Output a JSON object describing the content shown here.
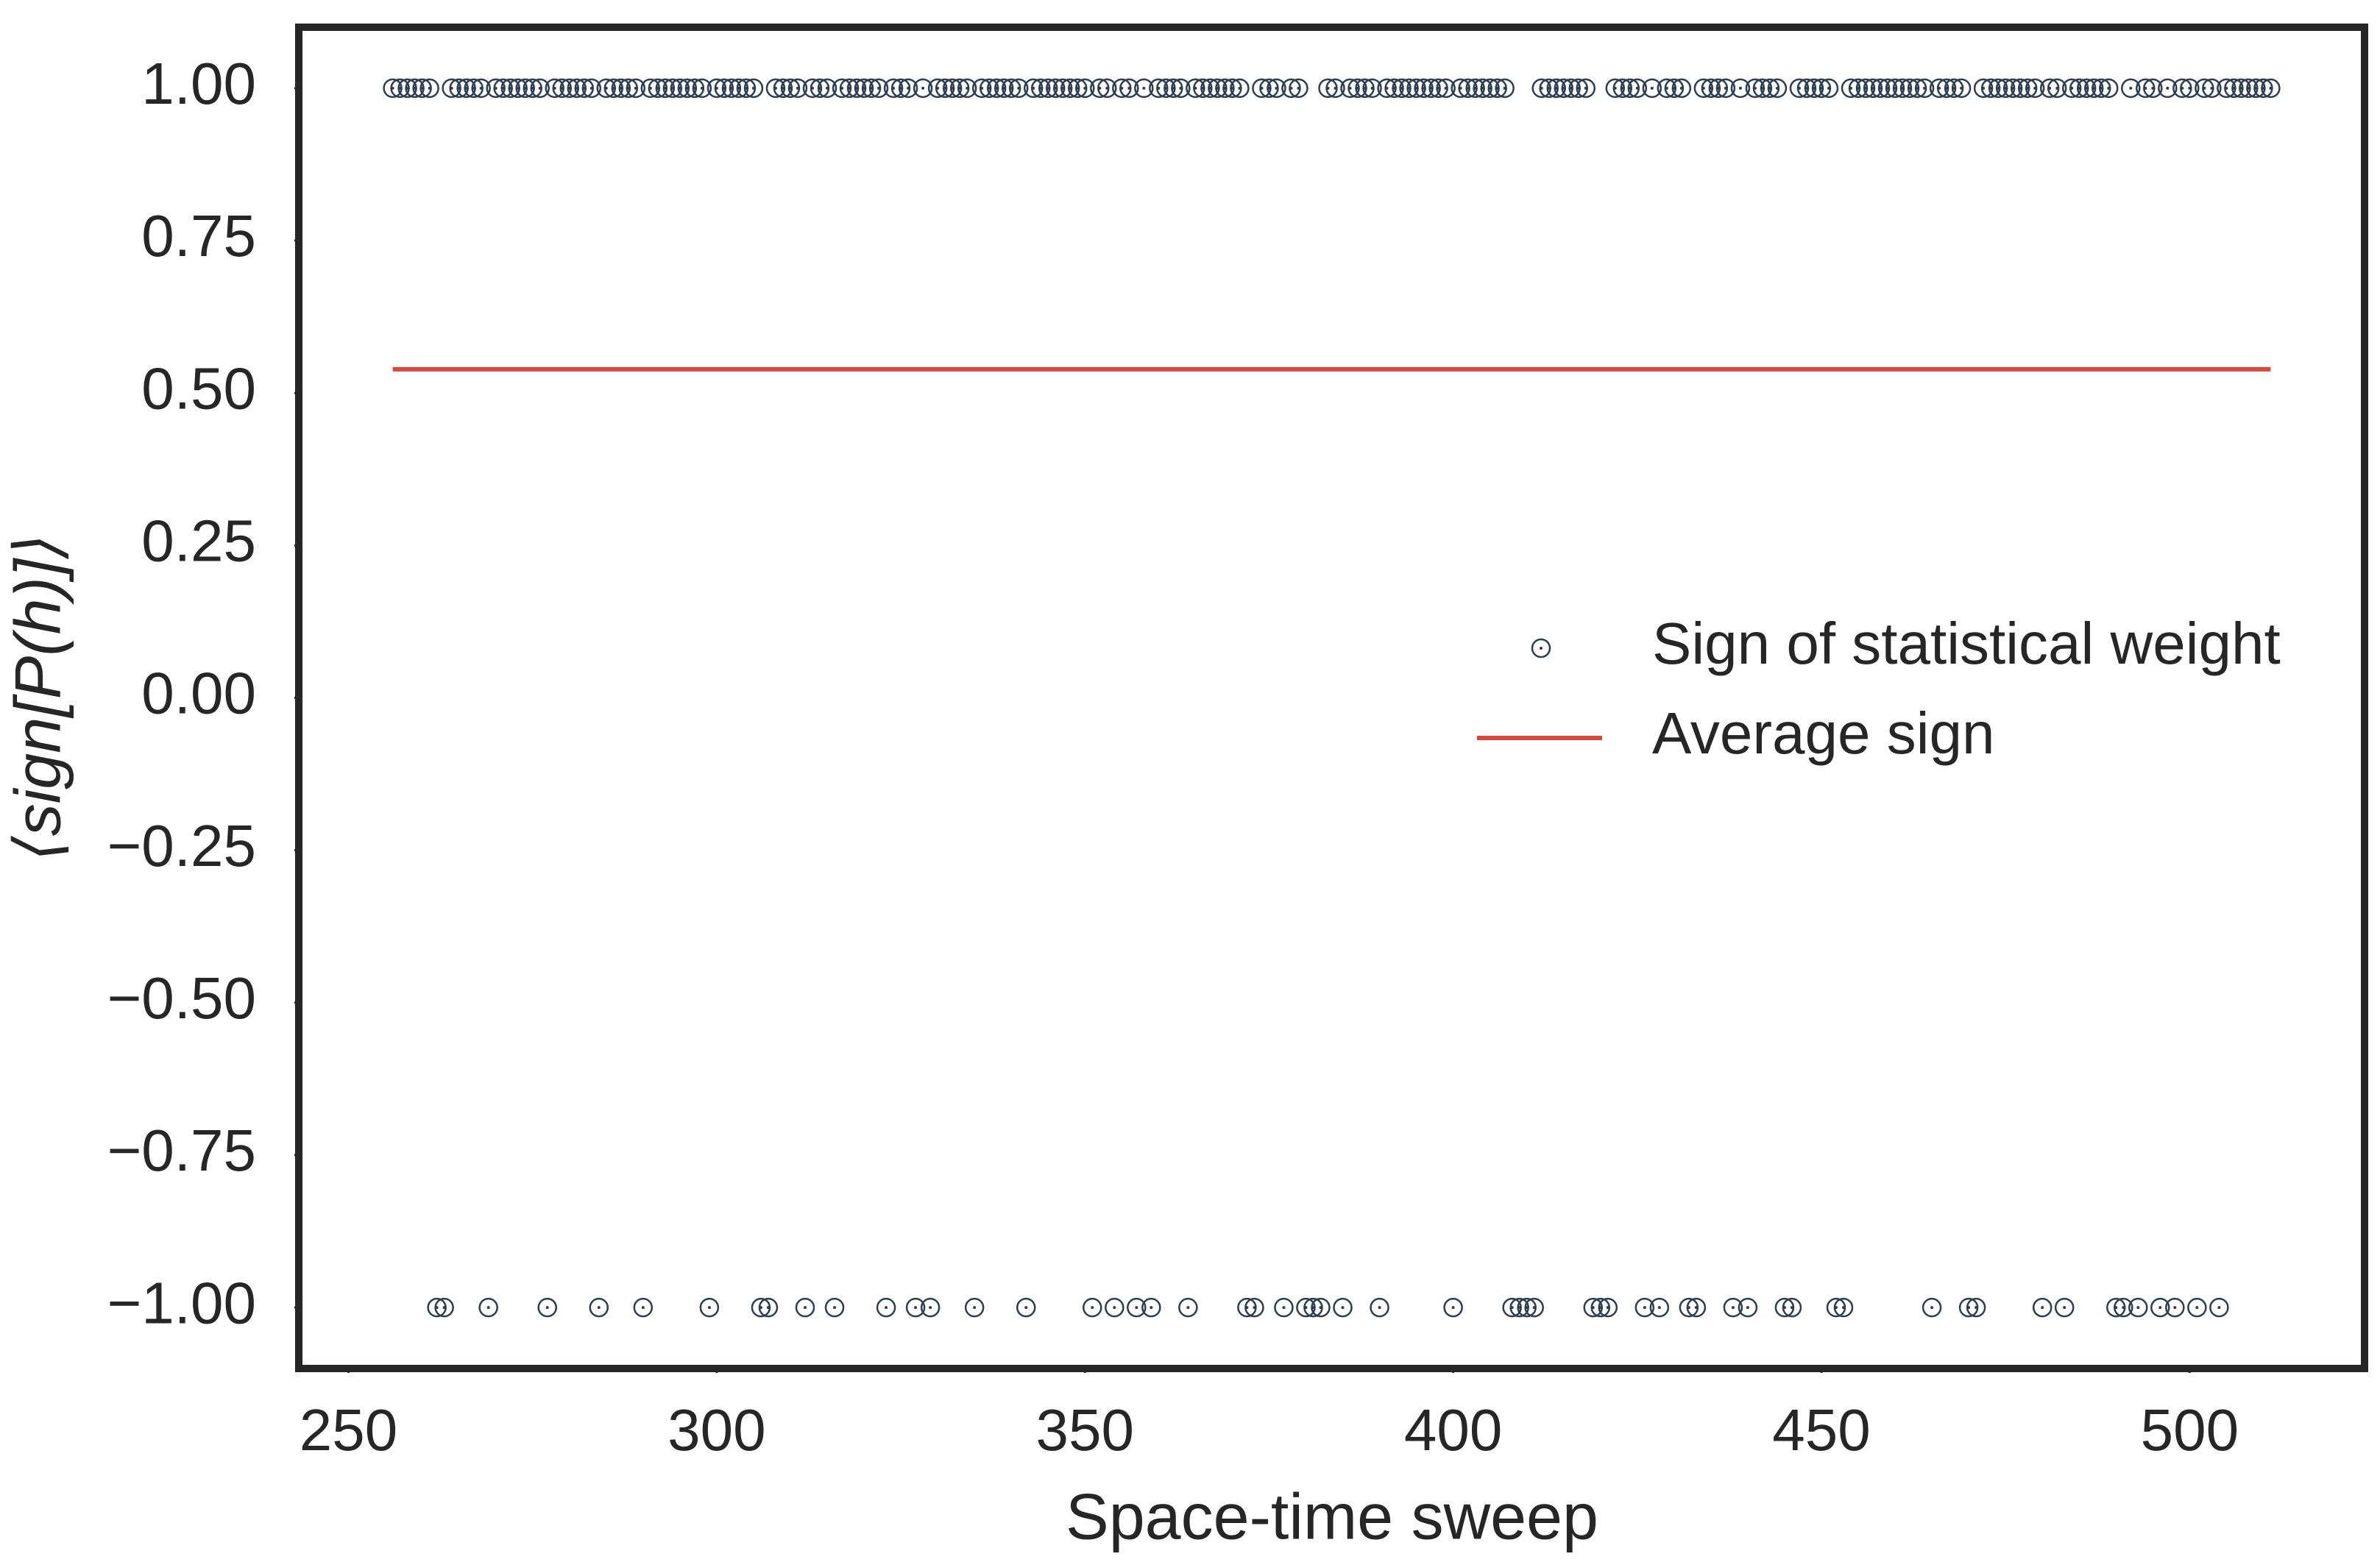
{
  "chart_data": {
    "type": "scatter",
    "x_label": "Space-time sweep",
    "y_label": "⟨sign[P(h)]⟩",
    "xlim": [
      243.25,
      523.75
    ],
    "ylim": [
      -1.1,
      1.1
    ],
    "xticks": [
      250,
      300,
      350,
      400,
      450,
      500
    ],
    "yticks": [
      {
        "value": 1,
        "label": "1.00"
      },
      {
        "value": 0.75,
        "label": "0.75"
      },
      {
        "value": 0.5,
        "label": "0.50"
      },
      {
        "value": 0.25,
        "label": "0.25"
      },
      {
        "value": 0,
        "label": "0.00"
      },
      {
        "value": -0.25,
        "label": "−0.25"
      },
      {
        "value": -0.5,
        "label": "−0.50"
      },
      {
        "value": -0.75,
        "label": "−0.75"
      },
      {
        "value": -1,
        "label": "−1.00"
      }
    ],
    "grid": false,
    "legend": "center right",
    "series": [
      {
        "name": "Sign of statistical weight",
        "color": "#2c3e50",
        "style": "marker",
        "x": [
          256,
          257,
          258,
          259,
          260,
          261,
          262,
          263,
          264,
          265,
          266,
          267,
          268,
          269,
          270,
          271,
          272,
          273,
          274,
          275,
          276,
          277,
          278,
          279,
          280,
          281,
          282,
          283,
          284,
          285,
          286,
          287,
          288,
          289,
          290,
          291,
          292,
          293,
          294,
          295,
          296,
          297,
          298,
          299,
          300,
          301,
          302,
          303,
          304,
          305,
          306,
          307,
          308,
          309,
          310,
          311,
          312,
          313,
          314,
          315,
          316,
          317,
          318,
          319,
          320,
          321,
          322,
          323,
          324,
          325,
          326,
          327,
          328,
          329,
          330,
          331,
          332,
          333,
          334,
          335,
          336,
          337,
          338,
          339,
          340,
          341,
          342,
          343,
          344,
          345,
          346,
          347,
          348,
          349,
          350,
          351,
          352,
          353,
          354,
          355,
          356,
          357,
          358,
          359,
          360,
          361,
          362,
          363,
          364,
          365,
          366,
          367,
          368,
          369,
          370,
          371,
          372,
          373,
          374,
          375,
          376,
          377,
          378,
          379,
          380,
          381,
          382,
          383,
          384,
          385,
          386,
          387,
          388,
          389,
          390,
          391,
          392,
          393,
          394,
          395,
          396,
          397,
          398,
          399,
          400,
          401,
          402,
          403,
          404,
          405,
          406,
          407,
          408,
          409,
          410,
          411,
          412,
          413,
          414,
          415,
          416,
          417,
          418,
          419,
          420,
          421,
          422,
          423,
          424,
          425,
          426,
          427,
          428,
          429,
          430,
          431,
          432,
          433,
          434,
          435,
          436,
          437,
          438,
          439,
          440,
          441,
          442,
          443,
          444,
          445,
          446,
          447,
          448,
          449,
          450,
          451,
          452,
          453,
          454,
          455,
          456,
          457,
          458,
          459,
          460,
          461,
          462,
          463,
          464,
          465,
          466,
          467,
          468,
          469,
          470,
          471,
          472,
          473,
          474,
          475,
          476,
          477,
          478,
          479,
          480,
          481,
          482,
          483,
          484,
          485,
          486,
          487,
          488,
          489,
          490,
          491,
          492,
          493,
          494,
          495,
          496,
          497,
          498,
          499,
          500,
          501,
          502,
          503,
          504,
          505,
          506,
          507,
          508,
          509,
          510,
          511
        ],
        "values": [
          1,
          1,
          1,
          1,
          1,
          1,
          -1,
          -1,
          1,
          1,
          1,
          1,
          1,
          -1,
          1,
          1,
          1,
          1,
          1,
          1,
          1,
          -1,
          1,
          1,
          1,
          1,
          1,
          1,
          -1,
          1,
          1,
          1,
          1,
          1,
          -1,
          1,
          1,
          1,
          1,
          1,
          1,
          1,
          1,
          -1,
          1,
          1,
          1,
          1,
          1,
          1,
          -1,
          -1,
          1,
          1,
          1,
          1,
          -1,
          1,
          1,
          1,
          -1,
          1,
          1,
          1,
          1,
          1,
          1,
          -1,
          1,
          1,
          1,
          -1,
          1,
          -1,
          1,
          1,
          1,
          1,
          1,
          -1,
          1,
          1,
          1,
          1,
          1,
          1,
          -1,
          1,
          1,
          1,
          1,
          1,
          1,
          1,
          1,
          -1,
          1,
          1,
          -1,
          1,
          1,
          -1,
          1,
          -1,
          1,
          1,
          1,
          1,
          -1,
          1,
          1,
          1,
          1,
          1,
          1,
          1,
          -1,
          -1,
          1,
          1,
          1,
          -1,
          1,
          1,
          -1,
          -1,
          -1,
          1,
          1,
          -1,
          1,
          1,
          1,
          1,
          -1,
          1,
          1,
          1,
          1,
          1,
          1,
          1,
          1,
          1,
          -1,
          1,
          1,
          1,
          1,
          1,
          1,
          1,
          -1,
          -1,
          -1,
          -1,
          1,
          1,
          1,
          1,
          1,
          1,
          1,
          -1,
          -1,
          -1,
          1,
          1,
          1,
          1,
          -1,
          1,
          -1,
          1,
          1,
          1,
          -1,
          -1,
          1,
          1,
          1,
          1,
          -1,
          1,
          -1,
          1,
          1,
          1,
          1,
          -1,
          -1,
          1,
          1,
          1,
          1,
          1,
          -1,
          -1,
          1,
          1,
          1,
          1,
          1,
          1,
          1,
          1,
          1,
          1,
          1,
          -1,
          1,
          1,
          1,
          1,
          -1,
          -1,
          1,
          1,
          1,
          1,
          1,
          1,
          1,
          1,
          -1,
          1,
          1,
          -1,
          1,
          1,
          1,
          1,
          1,
          1,
          -1,
          -1,
          1,
          -1,
          1,
          1,
          -1,
          1,
          -1,
          1,
          1,
          -1,
          1,
          1,
          -1,
          1,
          1,
          1,
          1,
          1,
          1,
          1
        ]
      },
      {
        "name": "Average sign",
        "color": "#d9483b",
        "style": "line",
        "x": [
          256,
          511
        ],
        "values": [
          0.539,
          0.539
        ]
      }
    ]
  }
}
